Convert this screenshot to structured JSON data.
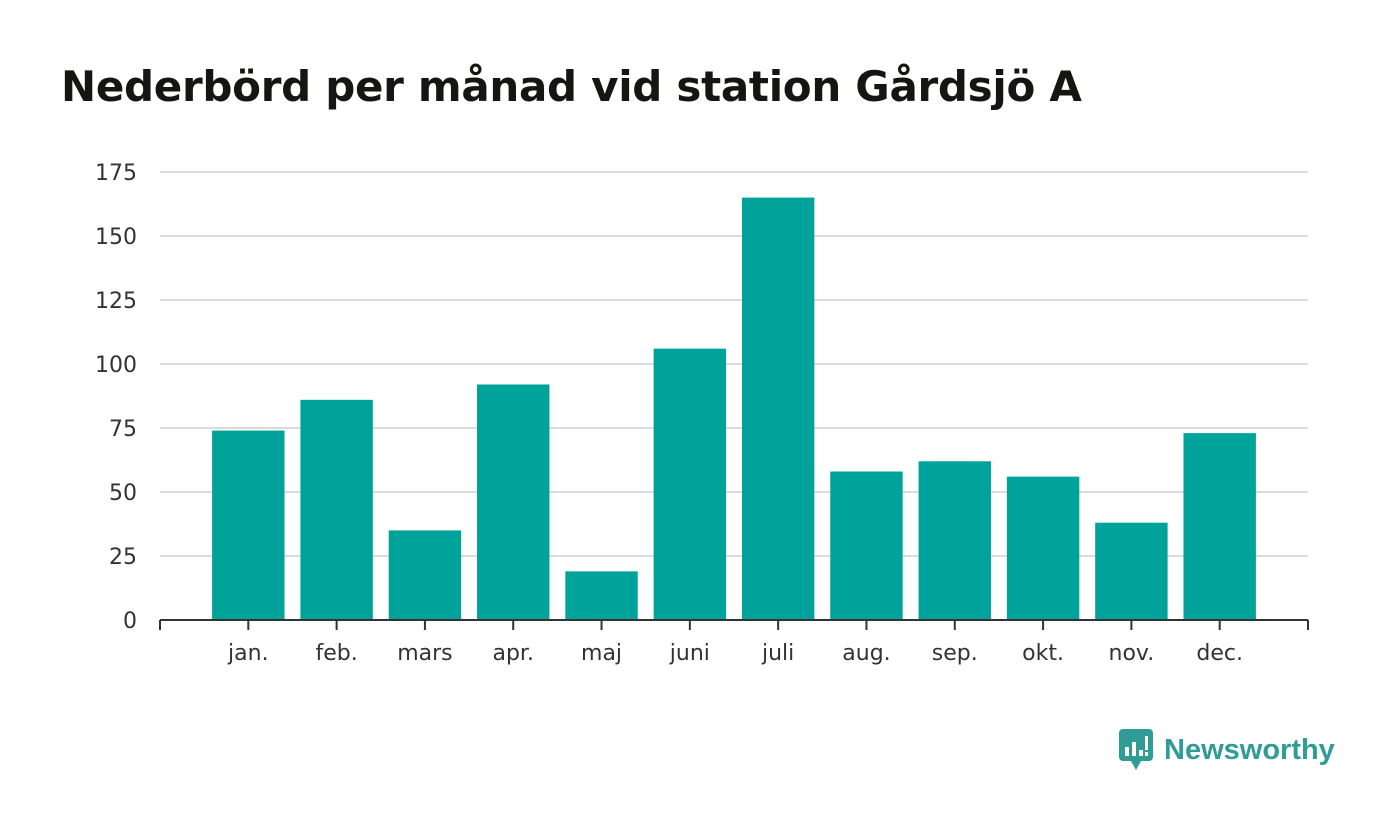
{
  "chart_data": {
    "type": "bar",
    "title": "Nederbörd per månad vid station Gårdsjö A",
    "xlabel": "",
    "ylabel": "",
    "categories": [
      "jan.",
      "feb.",
      "mars",
      "apr.",
      "maj",
      "juni",
      "juli",
      "aug.",
      "sep.",
      "okt.",
      "nov.",
      "dec."
    ],
    "values": [
      74,
      86,
      35,
      92,
      19,
      106,
      165,
      58,
      62,
      56,
      38,
      73
    ],
    "ylim": [
      0,
      175
    ],
    "yticks": [
      0,
      25,
      50,
      75,
      100,
      125,
      150,
      175
    ],
    "grid": true,
    "legend": "none"
  },
  "colors": {
    "bar": "#00a39a",
    "grid": "#dcdcdc",
    "axis": "#333333",
    "title": "#151511",
    "brand": "#2f9d96"
  },
  "brand": {
    "name": "Newsworthy",
    "icon": "newsworthy-logo-icon"
  }
}
